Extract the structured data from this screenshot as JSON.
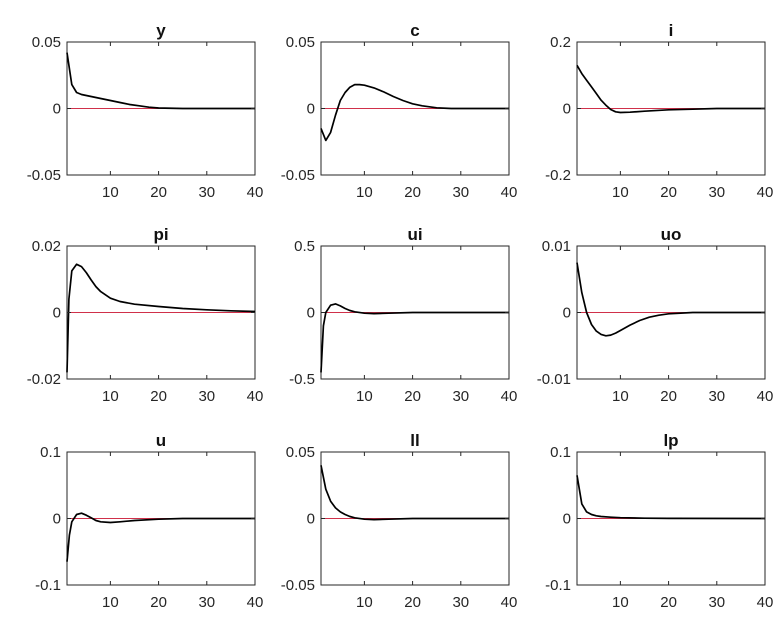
{
  "colors": {
    "response": "#000000",
    "zero_line": "#d0304a",
    "axes": "#262626",
    "background": "#ffffff"
  },
  "chart_data": [
    {
      "type": "line",
      "title": "y",
      "xlim": [
        1,
        40
      ],
      "ylim": [
        -0.05,
        0.05
      ],
      "xticks": [
        10,
        20,
        30,
        40
      ],
      "xtick_labels": [
        "10",
        "20",
        "30",
        "40"
      ],
      "yticks": [
        0.05,
        0,
        -0.05
      ],
      "ytick_labels": [
        "0.05",
        "0",
        "-0.05"
      ],
      "series": [
        {
          "x": [
            1,
            2,
            3,
            4,
            6,
            8,
            10,
            12,
            14,
            16,
            18,
            20,
            25,
            30,
            40
          ],
          "y": [
            0.042,
            0.018,
            0.012,
            0.0105,
            0.009,
            0.0075,
            0.006,
            0.0045,
            0.003,
            0.002,
            0.001,
            0.0004,
            0,
            0,
            0
          ]
        }
      ]
    },
    {
      "type": "line",
      "title": "c",
      "xlim": [
        1,
        40
      ],
      "ylim": [
        -0.05,
        0.05
      ],
      "xticks": [
        10,
        20,
        30,
        40
      ],
      "xtick_labels": [
        "10",
        "20",
        "30",
        "40"
      ],
      "yticks": [
        0.05,
        0,
        -0.05
      ],
      "ytick_labels": [
        "0.05",
        "0",
        "-0.05"
      ],
      "series": [
        {
          "x": [
            1,
            2,
            3,
            4,
            5,
            6,
            7,
            8,
            9,
            10,
            12,
            14,
            16,
            18,
            20,
            22,
            25,
            28,
            30,
            40
          ],
          "y": [
            -0.015,
            -0.024,
            -0.018,
            -0.005,
            0.006,
            0.012,
            0.016,
            0.018,
            0.018,
            0.0175,
            0.0155,
            0.0125,
            0.009,
            0.006,
            0.0035,
            0.002,
            0.0005,
            0,
            0,
            0
          ]
        }
      ]
    },
    {
      "type": "line",
      "title": "i",
      "xlim": [
        1,
        40
      ],
      "ylim": [
        -0.2,
        0.2
      ],
      "xticks": [
        10,
        20,
        30,
        40
      ],
      "xtick_labels": [
        "10",
        "20",
        "30",
        "40"
      ],
      "yticks": [
        0.2,
        0,
        -0.2
      ],
      "ytick_labels": [
        "0.2",
        "0",
        "-0.2"
      ],
      "series": [
        {
          "x": [
            1,
            2,
            3,
            4,
            5,
            6,
            7,
            8,
            9,
            10,
            12,
            15,
            20,
            25,
            30,
            40
          ],
          "y": [
            0.13,
            0.105,
            0.085,
            0.065,
            0.045,
            0.025,
            0.01,
            -0.003,
            -0.01,
            -0.012,
            -0.011,
            -0.008,
            -0.004,
            -0.002,
            0,
            0
          ]
        }
      ]
    },
    {
      "type": "line",
      "title": "pi",
      "xlim": [
        1,
        40
      ],
      "ylim": [
        -0.02,
        0.02
      ],
      "xticks": [
        10,
        20,
        30,
        40
      ],
      "xtick_labels": [
        "10",
        "20",
        "30",
        "40"
      ],
      "yticks": [
        0.02,
        0,
        -0.02
      ],
      "ytick_labels": [
        "0.02",
        "0",
        "-0.02"
      ],
      "series": [
        {
          "x": [
            1,
            1.4,
            2,
            3,
            4,
            5,
            6,
            7,
            8,
            10,
            12,
            15,
            20,
            25,
            30,
            35,
            40
          ],
          "y": [
            -0.018,
            0.004,
            0.0125,
            0.0145,
            0.0138,
            0.012,
            0.0098,
            0.0078,
            0.0063,
            0.0043,
            0.0033,
            0.0025,
            0.0018,
            0.0012,
            0.0008,
            0.0005,
            0.0003
          ]
        }
      ]
    },
    {
      "type": "line",
      "title": "ui",
      "xlim": [
        1,
        40
      ],
      "ylim": [
        -0.5,
        0.5
      ],
      "xticks": [
        10,
        20,
        30,
        40
      ],
      "xtick_labels": [
        "10",
        "20",
        "30",
        "40"
      ],
      "yticks": [
        0.5,
        0,
        -0.5
      ],
      "ytick_labels": [
        "0.5",
        "0",
        "-0.5"
      ],
      "series": [
        {
          "x": [
            1,
            1.5,
            2,
            3,
            4,
            5,
            6,
            7,
            8,
            10,
            12,
            15,
            20,
            40
          ],
          "y": [
            -0.45,
            -0.1,
            0.0,
            0.055,
            0.065,
            0.05,
            0.03,
            0.015,
            0.005,
            -0.005,
            -0.008,
            -0.005,
            0,
            0
          ]
        }
      ]
    },
    {
      "type": "line",
      "title": "uo",
      "xlim": [
        1,
        40
      ],
      "ylim": [
        -0.01,
        0.01
      ],
      "xticks": [
        10,
        20,
        30,
        40
      ],
      "xtick_labels": [
        "10",
        "20",
        "30",
        "40"
      ],
      "yticks": [
        0.01,
        0,
        -0.01
      ],
      "ytick_labels": [
        "0.01",
        "0",
        "-0.01"
      ],
      "series": [
        {
          "x": [
            1,
            2,
            3,
            4,
            5,
            6,
            7,
            8,
            9,
            10,
            12,
            14,
            16,
            18,
            20,
            25,
            30,
            40
          ],
          "y": [
            0.0075,
            0.003,
            0.0,
            -0.0018,
            -0.0028,
            -0.0033,
            -0.0035,
            -0.0034,
            -0.0031,
            -0.0027,
            -0.0019,
            -0.0012,
            -0.0007,
            -0.0004,
            -0.0002,
            0,
            0,
            0
          ]
        }
      ]
    },
    {
      "type": "line",
      "title": "u",
      "xlim": [
        1,
        40
      ],
      "ylim": [
        -0.1,
        0.1
      ],
      "xticks": [
        10,
        20,
        30,
        40
      ],
      "xtick_labels": [
        "10",
        "20",
        "30",
        "40"
      ],
      "yticks": [
        0.1,
        0,
        -0.1
      ],
      "ytick_labels": [
        "0.1",
        "0",
        "-0.1"
      ],
      "series": [
        {
          "x": [
            1,
            1.5,
            2,
            3,
            4,
            5,
            6,
            7,
            8,
            10,
            12,
            15,
            20,
            25,
            40
          ],
          "y": [
            -0.065,
            -0.025,
            -0.005,
            0.006,
            0.008,
            0.005,
            0.001,
            -0.003,
            -0.005,
            -0.006,
            -0.005,
            -0.003,
            -0.001,
            0,
            0
          ]
        }
      ]
    },
    {
      "type": "line",
      "title": "ll",
      "xlim": [
        1,
        40
      ],
      "ylim": [
        -0.05,
        0.05
      ],
      "xticks": [
        10,
        20,
        30,
        40
      ],
      "xtick_labels": [
        "10",
        "20",
        "30",
        "40"
      ],
      "yticks": [
        0.05,
        0,
        -0.05
      ],
      "ytick_labels": [
        "0.05",
        "0",
        "-0.05"
      ],
      "series": [
        {
          "x": [
            1,
            2,
            3,
            4,
            5,
            6,
            7,
            8,
            10,
            12,
            15,
            20,
            40
          ],
          "y": [
            0.04,
            0.022,
            0.013,
            0.008,
            0.005,
            0.003,
            0.0015,
            0.0005,
            -0.0005,
            -0.0008,
            -0.0005,
            0,
            0
          ]
        }
      ]
    },
    {
      "type": "line",
      "title": "lp",
      "xlim": [
        1,
        40
      ],
      "ylim": [
        -0.1,
        0.1
      ],
      "xticks": [
        10,
        20,
        30,
        40
      ],
      "xtick_labels": [
        "10",
        "20",
        "30",
        "40"
      ],
      "yticks": [
        0.1,
        0,
        -0.1
      ],
      "ytick_labels": [
        "0.1",
        "0",
        "-0.1"
      ],
      "series": [
        {
          "x": [
            1,
            2,
            3,
            4,
            5,
            6,
            8,
            10,
            15,
            20,
            40
          ],
          "y": [
            0.065,
            0.022,
            0.01,
            0.006,
            0.004,
            0.003,
            0.002,
            0.0012,
            0.0005,
            0.0002,
            0
          ]
        }
      ]
    }
  ]
}
